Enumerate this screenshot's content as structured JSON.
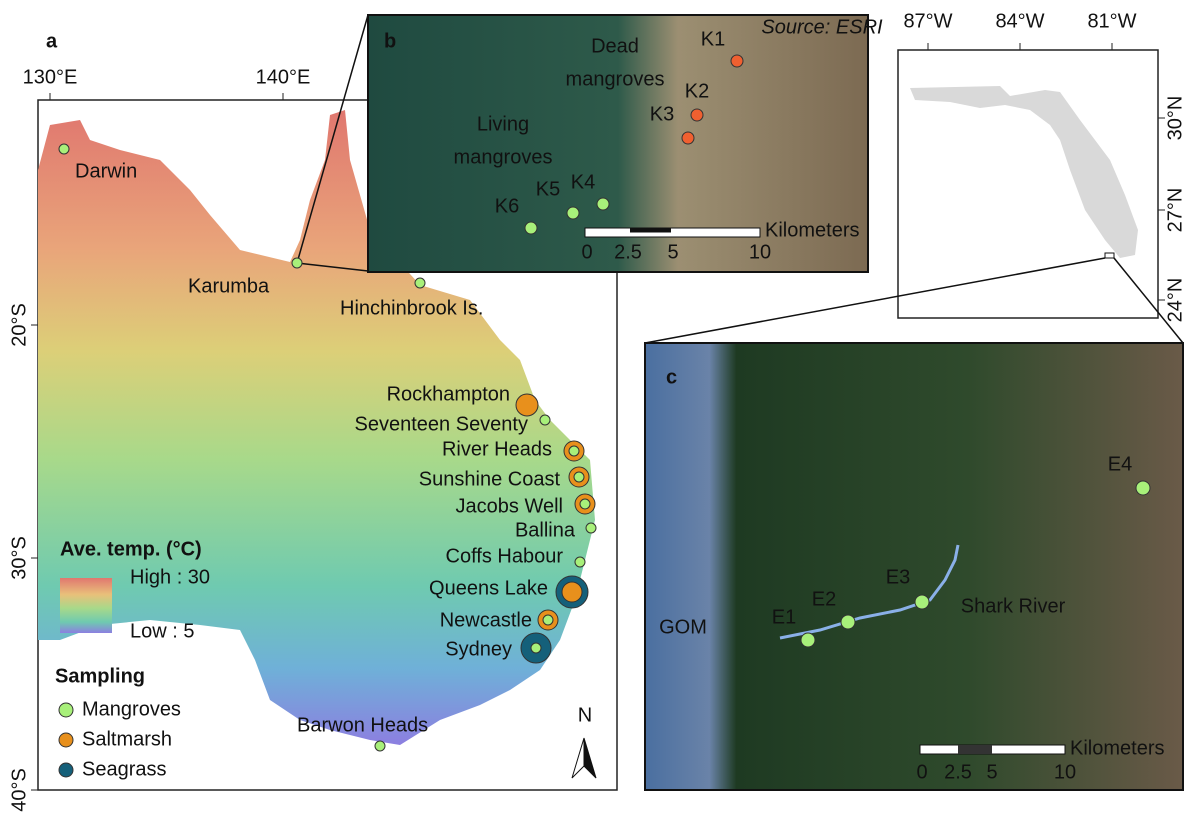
{
  "panel_a": {
    "label": "a",
    "lon_ticks": [
      "130°E",
      "140°E"
    ],
    "lat_ticks": [
      "20°S",
      "30°S",
      "40°S"
    ],
    "sites": [
      "Darwin",
      "Karumba",
      "Hinchinbrook Is.",
      "Rockhampton",
      "Seventeen Seventy",
      "River Heads",
      "Sunshine Coast",
      "Jacobs Well",
      "Ballina",
      "Coffs Habour",
      "Queens Lake",
      "Newcastle",
      "Sydney",
      "Barwon Heads"
    ],
    "legend": {
      "title": "Ave. temp. (°C)",
      "high": "High : 30",
      "low": "Low : 5",
      "sampling_title": "Sampling",
      "sampling": [
        "Mangroves",
        "Saltmarsh",
        "Seagrass"
      ]
    },
    "north": "N"
  },
  "panel_b": {
    "label": "b",
    "source": "Source: ESRI",
    "dead": [
      "Dead",
      "mangroves"
    ],
    "living": [
      "Living",
      "mangroves"
    ],
    "sites": [
      "K1",
      "K2",
      "K3",
      "K4",
      "K5",
      "K6"
    ],
    "scale_unit": "Kilometers",
    "scale_ticks": [
      "0",
      "2.5",
      "5",
      "10"
    ]
  },
  "inset": {
    "lon_ticks": [
      "87°W",
      "84°W",
      "81°W"
    ],
    "lat_ticks": [
      "30°N",
      "27°N",
      "24°N"
    ]
  },
  "panel_c": {
    "label": "c",
    "sites": [
      "E1",
      "E2",
      "E3",
      "E4"
    ],
    "river": "Shark River",
    "sea": "GOM",
    "scale_unit": "Kilometers",
    "scale_ticks": [
      "0",
      "2.5",
      "5",
      "10"
    ]
  }
}
